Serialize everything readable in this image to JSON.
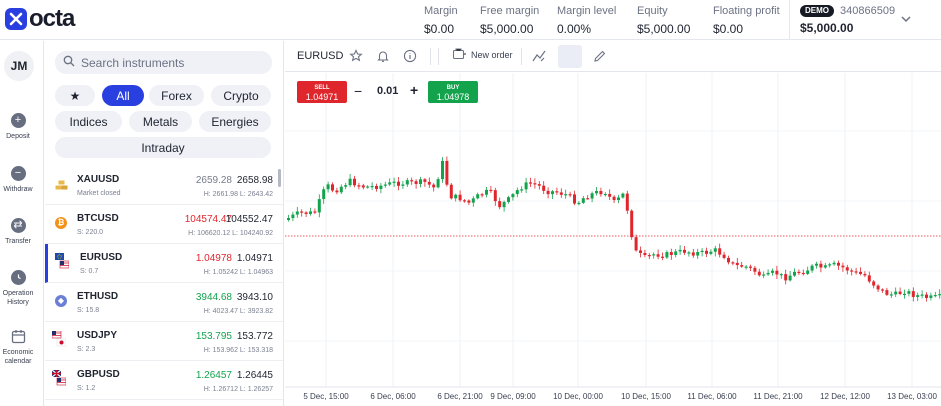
{
  "app": {
    "name": "octa"
  },
  "header": {
    "metrics": [
      {
        "label": "Margin",
        "value": "$0.00"
      },
      {
        "label": "Free margin",
        "value": "$5,000.00"
      },
      {
        "label": "Margin level",
        "value": "0.00%"
      },
      {
        "label": "Equity",
        "value": "$5,000.00"
      },
      {
        "label": "Floating profit",
        "value": "$0.00"
      }
    ],
    "account": {
      "badge": "DEMO",
      "number": "340866509",
      "balance": "$5,000.00"
    }
  },
  "leftnav": {
    "avatar": "JM",
    "items": [
      {
        "label": "Deposit",
        "icon": "plus-circle-icon"
      },
      {
        "label": "Withdraw",
        "icon": "minus-circle-icon"
      },
      {
        "label": "Transfer",
        "icon": "transfer-icon"
      },
      {
        "label": "Operation History",
        "icon": "clock-icon"
      },
      {
        "label": "Economic calendar",
        "icon": "calendar-icon"
      }
    ]
  },
  "instruments": {
    "search_placeholder": "Search instruments",
    "filters": [
      "All",
      "Forex",
      "Crypto",
      "Indices",
      "Metals",
      "Energies",
      "Intraday"
    ],
    "active_filter": "All",
    "rows": [
      {
        "symbol": "XAUUSD",
        "sub": "Market closed",
        "p1": "2659.28",
        "p2": "2658.98",
        "hl": "H: 2661.98   L: 2643.42",
        "p1color": "grey",
        "icon_color": "#e8b84b"
      },
      {
        "symbol": "BTCUSD",
        "sub": "S: 220.0",
        "p1": "104574.47",
        "p2": "104552.47",
        "hl": "H: 106620.12   L: 104240.92",
        "p1color": "red",
        "icon_color": "#f2921b"
      },
      {
        "symbol": "EURUSD",
        "sub": "S: 0.7",
        "p1": "1.04978",
        "p2": "1.04971",
        "hl": "H: 1.05242   L: 1.04963",
        "p1color": "red",
        "icon_color": "#1f4aa8"
      },
      {
        "symbol": "ETHUSD",
        "sub": "S: 15.8",
        "p1": "3944.68",
        "p2": "3943.10",
        "hl": "H: 4023.47   L: 3923.82",
        "p1color": "green",
        "icon_color": "#6b7fd6"
      },
      {
        "symbol": "USDJPY",
        "sub": "S: 2.3",
        "p1": "153.795",
        "p2": "153.772",
        "hl": "H: 153.962   L: 153.318",
        "p1color": "green",
        "icon_color": "#c8102e"
      },
      {
        "symbol": "GBPUSD",
        "sub": "S: 1.2",
        "p1": "1.26457",
        "p2": "1.26445",
        "hl": "H: 1.26712   L: 1.26257",
        "p1color": "green",
        "icon_color": "#c8102e"
      }
    ]
  },
  "chart": {
    "symbol": "EURUSD",
    "new_order_label": "New order",
    "sell_label": "SELL",
    "sell_price": "1.04971",
    "buy_label": "BUY",
    "buy_price": "1.04978",
    "quantity": "0.01",
    "x_labels": [
      "5 Dec, 15:00",
      "6 Dec, 06:00",
      "6 Dec, 21:00",
      "9 Dec, 09:00",
      "10 Dec, 00:00",
      "10 Dec, 15:00",
      "11 Dec, 06:00",
      "11 Dec, 21:00",
      "12 Dec, 12:00",
      "13 Dec, 03:00"
    ],
    "colors": {
      "up": "#12a34c",
      "down": "#e0262d"
    }
  }
}
